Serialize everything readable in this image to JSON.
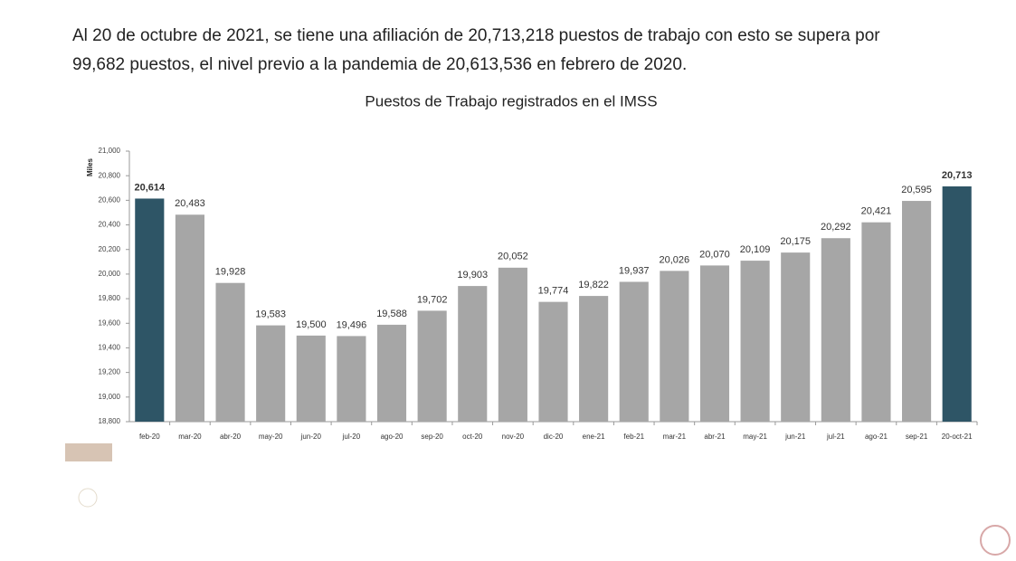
{
  "intro": [
    "Al 20 de octubre de 2021, se tiene una afiliación de  20,713,218 puestos de trabajo con esto se supera por",
    "99,682 puestos, el nivel previo a la pandemia de 20,613,536 en febrero de 2020."
  ],
  "chart_data": {
    "type": "bar",
    "title": "Puestos de Trabajo registrados en el IMSS",
    "y_label": "Miles",
    "categories": [
      "feb-20",
      "mar-20",
      "abr-20",
      "may-20",
      "jun-20",
      "jul-20",
      "ago-20",
      "sep-20",
      "oct-20",
      "nov-20",
      "dic-20",
      "ene-21",
      "feb-21",
      "mar-21",
      "abr-21",
      "may-21",
      "jun-21",
      "jul-21",
      "ago-21",
      "sep-21",
      "20-oct-21"
    ],
    "values": [
      20614,
      20483,
      19928,
      19583,
      19500,
      19496,
      19588,
      19702,
      19903,
      20052,
      19774,
      19822,
      19937,
      20026,
      20070,
      20109,
      20175,
      20292,
      20421,
      20595,
      20713
    ],
    "value_labels": [
      "20,614",
      "20,483",
      "19,928",
      "19,583",
      "19,500",
      "19,496",
      "19,588",
      "19,702",
      "19,903",
      "20,052",
      "19,774",
      "19,822",
      "19,937",
      "20,026",
      "20,070",
      "20,109",
      "20,175",
      "20,292",
      "20,421",
      "20,595",
      "20,713"
    ],
    "colors": [
      "#2e5566",
      "#a6a6a6",
      "#a6a6a6",
      "#a6a6a6",
      "#a6a6a6",
      "#a6a6a6",
      "#a6a6a6",
      "#a6a6a6",
      "#a6a6a6",
      "#a6a6a6",
      "#a6a6a6",
      "#a6a6a6",
      "#a6a6a6",
      "#a6a6a6",
      "#a6a6a6",
      "#a6a6a6",
      "#a6a6a6",
      "#a6a6a6",
      "#a6a6a6",
      "#a6a6a6",
      "#2e5566"
    ],
    "value_label_weights": [
      "bold",
      "normal",
      "normal",
      "normal",
      "normal",
      "normal",
      "normal",
      "normal",
      "normal",
      "normal",
      "normal",
      "normal",
      "normal",
      "normal",
      "normal",
      "normal",
      "normal",
      "normal",
      "normal",
      "normal",
      "bold"
    ],
    "ylim": [
      18800,
      21000
    ],
    "yticks": [
      {
        "value": 18800,
        "label": "18,800"
      },
      {
        "value": 19000,
        "label": "19,000"
      },
      {
        "value": 19200,
        "label": "19,200"
      },
      {
        "value": 19400,
        "label": "19,400"
      },
      {
        "value": 19600,
        "label": "19,600"
      },
      {
        "value": 19800,
        "label": "19,800"
      },
      {
        "value": 20000,
        "label": "20,000"
      },
      {
        "value": 20200,
        "label": "20,200"
      },
      {
        "value": 20400,
        "label": "20,400"
      },
      {
        "value": 20600,
        "label": "20,600"
      },
      {
        "value": 20800,
        "label": "20,800"
      },
      {
        "value": 21000,
        "label": "21,000"
      }
    ],
    "grid": false
  }
}
